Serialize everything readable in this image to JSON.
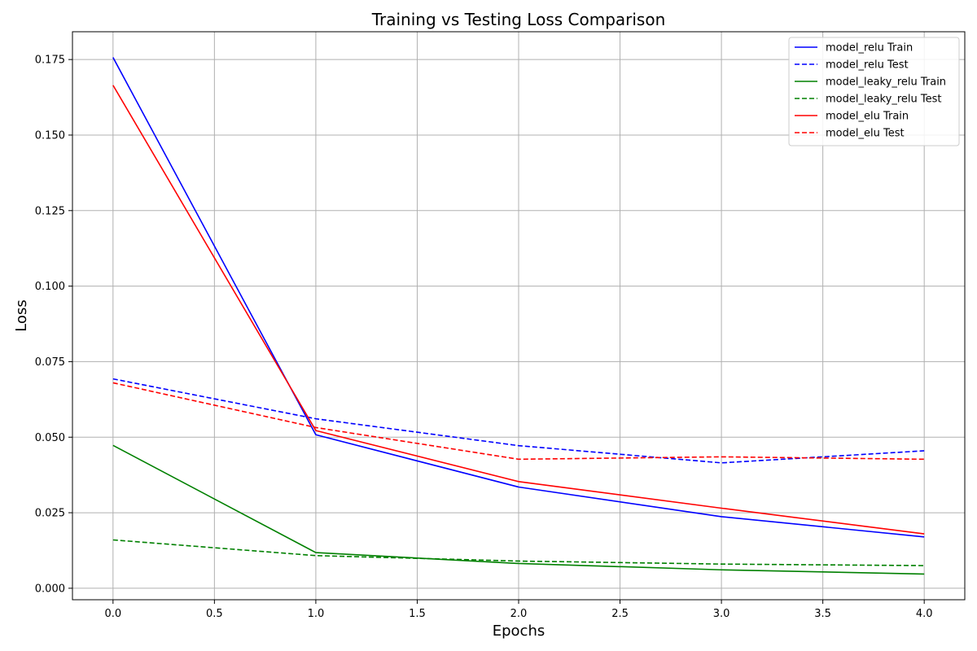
{
  "chart_data": {
    "type": "line",
    "title": "Training vs Testing Loss Comparison",
    "xlabel": "Epochs",
    "ylabel": "Loss",
    "xlim": [
      -0.2,
      4.2
    ],
    "ylim": [
      -0.0038,
      0.1842
    ],
    "x_ticks": [
      0.0,
      0.5,
      1.0,
      1.5,
      2.0,
      2.5,
      3.0,
      3.5,
      4.0
    ],
    "x_tick_labels": [
      "0.0",
      "0.5",
      "1.0",
      "1.5",
      "2.0",
      "2.5",
      "3.0",
      "3.5",
      "4.0"
    ],
    "y_ticks": [
      0.0,
      0.025,
      0.05,
      0.075,
      0.1,
      0.125,
      0.15,
      0.175
    ],
    "y_tick_labels": [
      "0.000",
      "0.025",
      "0.050",
      "0.075",
      "0.100",
      "0.125",
      "0.150",
      "0.175"
    ],
    "grid": true,
    "legend_position": "top-right",
    "x": [
      0,
      1,
      2,
      3,
      4
    ],
    "series": [
      {
        "name": "model_relu Train",
        "color": "#0000ff",
        "dash": "solid",
        "values": [
          0.1757,
          0.0508,
          0.0335,
          0.0237,
          0.017
        ]
      },
      {
        "name": "model_relu Test",
        "color": "#0000ff",
        "dash": "dashed",
        "values": [
          0.0693,
          0.0561,
          0.0472,
          0.0415,
          0.0455
        ]
      },
      {
        "name": "model_leaky_relu Train",
        "color": "#008000",
        "dash": "solid",
        "values": [
          0.0473,
          0.0118,
          0.0082,
          0.0061,
          0.0047
        ]
      },
      {
        "name": "model_leaky_relu Test",
        "color": "#008000",
        "dash": "dashed",
        "values": [
          0.016,
          0.0108,
          0.009,
          0.008,
          0.0075
        ]
      },
      {
        "name": "model_elu Train",
        "color": "#ff0000",
        "dash": "solid",
        "values": [
          0.1665,
          0.0522,
          0.0353,
          0.0265,
          0.018
        ]
      },
      {
        "name": "model_elu Test",
        "color": "#ff0000",
        "dash": "dashed",
        "values": [
          0.068,
          0.0532,
          0.0427,
          0.0435,
          0.0427
        ]
      }
    ]
  }
}
